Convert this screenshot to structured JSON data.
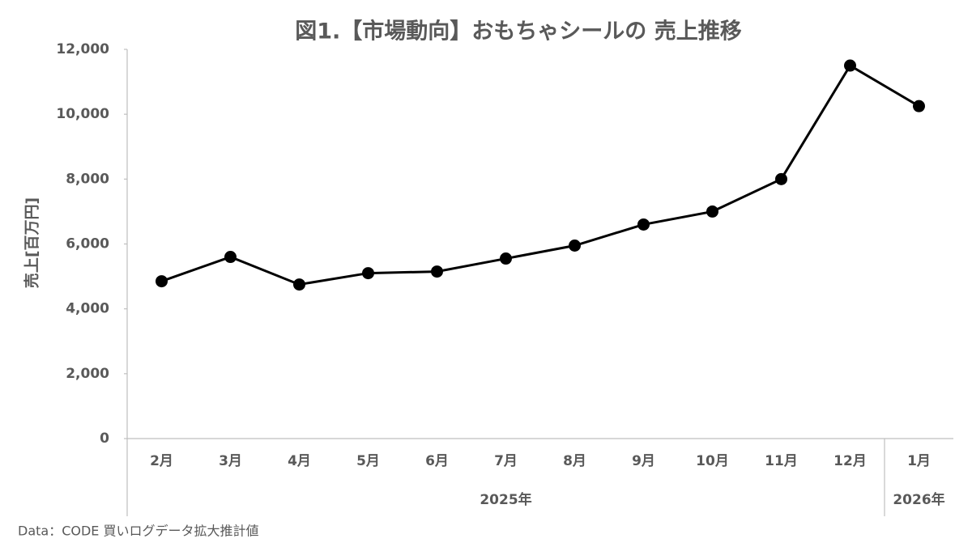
{
  "chart_data": {
    "type": "line",
    "title": "図1.【市場動向】おもちゃシールの 売上推移",
    "y_axis_label": "売上[百万円]",
    "source": "Data：CODE 買いログデータ拡大推計値",
    "categories": [
      "2月",
      "3月",
      "4月",
      "5月",
      "6月",
      "7月",
      "8月",
      "9月",
      "10月",
      "11月",
      "12月",
      "1月"
    ],
    "category_groups": [
      {
        "label": "2025年",
        "span": 11
      },
      {
        "label": "2026年",
        "span": 1
      }
    ],
    "series": [
      {
        "name": "売上",
        "color": "#000000",
        "values": [
          4850,
          5600,
          4750,
          5100,
          5150,
          5550,
          5950,
          6600,
          7000,
          8000,
          11500,
          10250
        ]
      }
    ],
    "ylim": [
      0,
      12000
    ],
    "yticks": [
      0,
      {
        "value": 2000,
        "label": "2,000"
      },
      {
        "value": 4000,
        "label": "4,000"
      },
      {
        "value": 6000,
        "label": "6,000"
      },
      {
        "value": 8000,
        "label": "8,000"
      },
      {
        "value": 10000,
        "label": "10,000"
      },
      {
        "value": 12000,
        "label": "12,000"
      }
    ],
    "grid": false
  }
}
